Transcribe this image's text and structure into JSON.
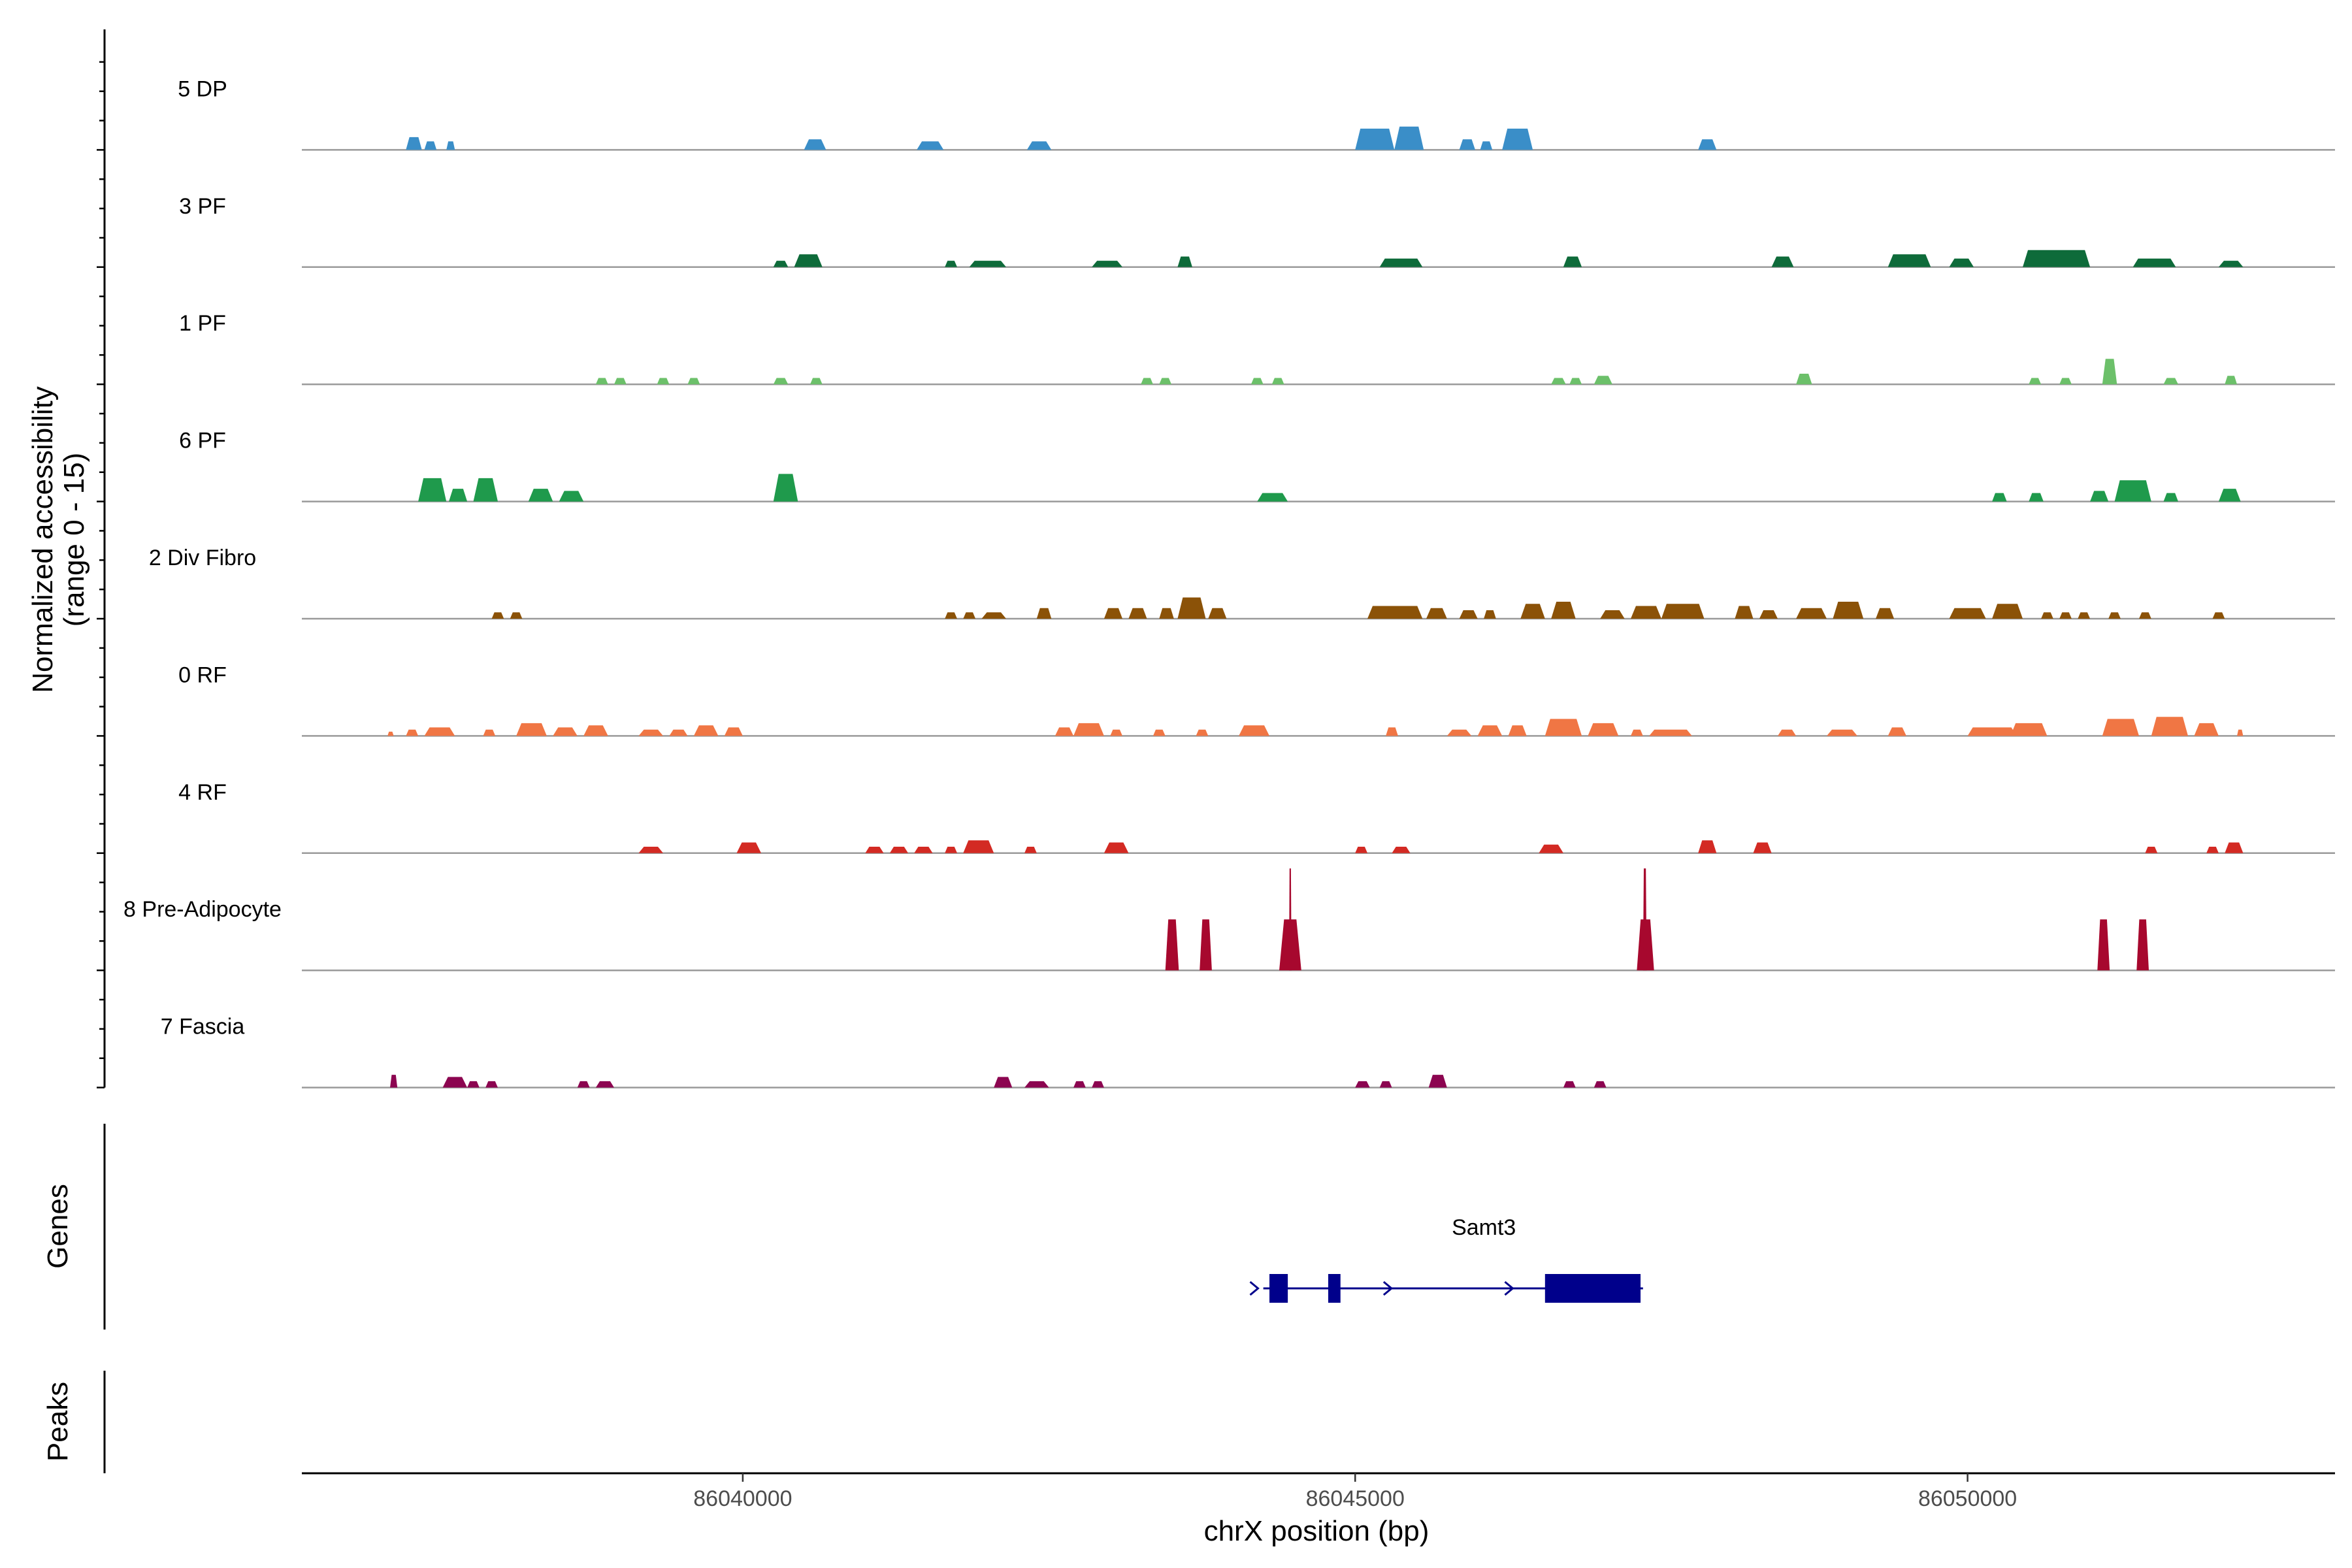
{
  "chart_data": {
    "type": "area",
    "title": "",
    "chromosome": "chrX",
    "xlabel": "chrX position (bp)",
    "ylabel_line1": "Normalized accessibility",
    "ylabel_line2": "(range 0 - 15)",
    "xlim": [
      86036400,
      86053000
    ],
    "ylim": [
      0,
      15
    ],
    "x_ticks": [
      86040000,
      86045000,
      86050000
    ],
    "x_tick_labels": [
      "86040000",
      "86045000",
      "86050000"
    ],
    "genes_label": "Genes",
    "peaks_label": "Peaks",
    "tracks": [
      {
        "name": "5 DP",
        "color": "#3a8ec8",
        "peaks": [
          [
            86037250,
            86037380,
            3
          ],
          [
            86037400,
            86037500,
            2
          ],
          [
            86037580,
            86037650,
            2
          ],
          [
            86040500,
            86040680,
            2.5
          ],
          [
            86041420,
            86041640,
            2
          ],
          [
            86042320,
            86042520,
            2
          ],
          [
            86045000,
            86045320,
            5
          ],
          [
            86045320,
            86045560,
            5.5
          ],
          [
            86045850,
            86045980,
            2.5
          ],
          [
            86046020,
            86046120,
            2
          ],
          [
            86046200,
            86046450,
            5
          ],
          [
            86047800,
            86047950,
            2.5
          ]
        ]
      },
      {
        "name": "3 PF",
        "color": "#0e6b3a",
        "peaks": [
          [
            86040250,
            86040370,
            1.5
          ],
          [
            86040420,
            86040650,
            3
          ],
          [
            86041650,
            86041750,
            1.5
          ],
          [
            86041850,
            86042150,
            1.5
          ],
          [
            86042850,
            86043100,
            1.5
          ],
          [
            86043550,
            86043670,
            2.5
          ],
          [
            86045200,
            86045550,
            2
          ],
          [
            86046700,
            86046850,
            2.5
          ],
          [
            86048400,
            86048580,
            2.5
          ],
          [
            86049350,
            86049700,
            3
          ],
          [
            86049850,
            86050050,
            2
          ],
          [
            86050450,
            86051000,
            4
          ],
          [
            86051350,
            86051700,
            2
          ],
          [
            86052050,
            86052250,
            1.5
          ]
        ]
      },
      {
        "name": "1 PF",
        "color": "#6cc06a",
        "peaks": [
          [
            86038800,
            86038900,
            1.5
          ],
          [
            86038950,
            86039050,
            1.5
          ],
          [
            86039300,
            86039400,
            1.5
          ],
          [
            86039550,
            86039650,
            1.5
          ],
          [
            86040250,
            86040370,
            1.5
          ],
          [
            86040550,
            86040650,
            1.5
          ],
          [
            86043250,
            86043350,
            1.5
          ],
          [
            86043400,
            86043500,
            1.5
          ],
          [
            86044150,
            86044250,
            1.5
          ],
          [
            86044320,
            86044420,
            1.5
          ],
          [
            86046600,
            86046720,
            1.5
          ],
          [
            86046750,
            86046850,
            1.5
          ],
          [
            86046950,
            86047100,
            2
          ],
          [
            86048600,
            86048730,
            2.5
          ],
          [
            86050500,
            86050600,
            1.5
          ],
          [
            86050750,
            86050850,
            1.5
          ],
          [
            86051100,
            86051220,
            6
          ],
          [
            86051600,
            86051720,
            1.5
          ],
          [
            86052100,
            86052200,
            2
          ]
        ]
      },
      {
        "name": "6 PF",
        "color": "#1f9a4c",
        "peaks": [
          [
            86037350,
            86037580,
            5.5
          ],
          [
            86037600,
            86037750,
            3
          ],
          [
            86037800,
            86038000,
            5.5
          ],
          [
            86038250,
            86038450,
            3
          ],
          [
            86038500,
            86038700,
            2.5
          ],
          [
            86040250,
            86040450,
            6.5
          ],
          [
            86044200,
            86044450,
            2
          ],
          [
            86050200,
            86050320,
            2
          ],
          [
            86050500,
            86050620,
            2
          ],
          [
            86051000,
            86051150,
            2.5
          ],
          [
            86051200,
            86051500,
            5
          ],
          [
            86051600,
            86051720,
            2
          ],
          [
            86052050,
            86052230,
            3
          ]
        ]
      },
      {
        "name": "2 Div Fibro",
        "color": "#8b5208",
        "peaks": [
          [
            86037950,
            86038050,
            1.5
          ],
          [
            86038100,
            86038200,
            1.5
          ],
          [
            86041650,
            86041750,
            1.5
          ],
          [
            86041800,
            86041900,
            1.5
          ],
          [
            86041950,
            86042150,
            1.5
          ],
          [
            86042400,
            86042520,
            2.5
          ],
          [
            86042950,
            86043100,
            2.5
          ],
          [
            86043150,
            86043300,
            2.5
          ],
          [
            86043400,
            86043520,
            2.5
          ],
          [
            86043550,
            86043780,
            5
          ],
          [
            86043800,
            86043950,
            2.5
          ],
          [
            86045100,
            86045550,
            3
          ],
          [
            86045580,
            86045750,
            2.5
          ],
          [
            86045850,
            86046000,
            2
          ],
          [
            86046050,
            86046150,
            2
          ],
          [
            86046350,
            86046550,
            3.5
          ],
          [
            86046600,
            86046800,
            4
          ],
          [
            86047000,
            86047200,
            2
          ],
          [
            86047250,
            86047500,
            3
          ],
          [
            86047500,
            86047850,
            3.5
          ],
          [
            86048100,
            86048250,
            3
          ],
          [
            86048300,
            86048450,
            2
          ],
          [
            86048600,
            86048850,
            2.5
          ],
          [
            86048900,
            86049150,
            4
          ],
          [
            86049250,
            86049400,
            2.5
          ],
          [
            86049850,
            86050150,
            2.5
          ],
          [
            86050200,
            86050450,
            3.5
          ],
          [
            86050600,
            86050700,
            1.5
          ],
          [
            86050750,
            86050850,
            1.5
          ],
          [
            86050900,
            86051000,
            1.5
          ],
          [
            86051150,
            86051250,
            1.5
          ],
          [
            86051400,
            86051500,
            1.5
          ],
          [
            86052000,
            86052100,
            1.5
          ]
        ]
      },
      {
        "name": "0 RF",
        "color": "#f07644",
        "peaks": [
          [
            86037100,
            86037150,
            1
          ],
          [
            86037250,
            86037350,
            1.5
          ],
          [
            86037400,
            86037650,
            2
          ],
          [
            86037880,
            86037980,
            1.5
          ],
          [
            86038150,
            86038400,
            3
          ],
          [
            86038450,
            86038650,
            2
          ],
          [
            86038700,
            86038900,
            2.5
          ],
          [
            86039150,
            86039350,
            1.5
          ],
          [
            86039400,
            86039550,
            1.5
          ],
          [
            86039600,
            86039800,
            2.5
          ],
          [
            86039850,
            86040000,
            2
          ],
          [
            86042550,
            86042700,
            2
          ],
          [
            86042700,
            86042950,
            3
          ],
          [
            86043000,
            86043100,
            1.5
          ],
          [
            86043350,
            86043450,
            1.5
          ],
          [
            86043700,
            86043800,
            1.5
          ],
          [
            86044050,
            86044300,
            2.5
          ],
          [
            86045250,
            86045350,
            2
          ],
          [
            86045750,
            86045950,
            1.5
          ],
          [
            86046000,
            86046200,
            2.5
          ],
          [
            86046250,
            86046400,
            2.5
          ],
          [
            86046550,
            86046850,
            4
          ],
          [
            86046900,
            86047150,
            3
          ],
          [
            86047250,
            86047350,
            1.5
          ],
          [
            86047400,
            86047750,
            1.5
          ],
          [
            86048450,
            86048600,
            1.5
          ],
          [
            86048850,
            86049100,
            1.5
          ],
          [
            86049350,
            86049500,
            2
          ],
          [
            86050000,
            86050400,
            2
          ],
          [
            86050350,
            86050650,
            3
          ],
          [
            86051100,
            86051400,
            4
          ],
          [
            86051500,
            86051800,
            4.5
          ],
          [
            86051850,
            86052050,
            3
          ],
          [
            86052200,
            86052250,
            1.5
          ]
        ]
      },
      {
        "name": "4 RF",
        "color": "#d32a23",
        "peaks": [
          [
            86039150,
            86039350,
            1.5
          ],
          [
            86039950,
            86040150,
            2.5
          ],
          [
            86041000,
            86041150,
            1.5
          ],
          [
            86041200,
            86041350,
            1.5
          ],
          [
            86041400,
            86041550,
            1.5
          ],
          [
            86041650,
            86041750,
            1.5
          ],
          [
            86041800,
            86042050,
            3
          ],
          [
            86042300,
            86042400,
            1.5
          ],
          [
            86042950,
            86043150,
            2.5
          ],
          [
            86045000,
            86045100,
            1.5
          ],
          [
            86045300,
            86045450,
            1.5
          ],
          [
            86046500,
            86046700,
            2
          ],
          [
            86047800,
            86047950,
            3
          ],
          [
            86048250,
            86048400,
            2.5
          ],
          [
            86051450,
            86051550,
            1.5
          ],
          [
            86051950,
            86052050,
            1.5
          ],
          [
            86052100,
            86052250,
            2.5
          ]
        ]
      },
      {
        "name": "8 Pre-Adipocyte",
        "color": "#a7082e",
        "peaks": [
          [
            86043450,
            86043560,
            12
          ],
          [
            86043730,
            86043830,
            12
          ],
          [
            86044380,
            86044560,
            12
          ],
          [
            86044460,
            86044480,
            24
          ],
          [
            86047300,
            86047440,
            12
          ],
          [
            86047350,
            86047380,
            24
          ],
          [
            86051060,
            86051160,
            12
          ],
          [
            86051380,
            86051480,
            12
          ]
        ]
      },
      {
        "name": "7 Fascia",
        "color": "#8c0550",
        "peaks": [
          [
            86037120,
            86037180,
            3
          ],
          [
            86037550,
            86037750,
            2.5
          ],
          [
            86037750,
            86037850,
            1.5
          ],
          [
            86037900,
            86038000,
            1.5
          ],
          [
            86038650,
            86038750,
            1.5
          ],
          [
            86038800,
            86038950,
            1.5
          ],
          [
            86042050,
            86042200,
            2.5
          ],
          [
            86042300,
            86042500,
            1.5
          ],
          [
            86042700,
            86042800,
            1.5
          ],
          [
            86042850,
            86042950,
            1.5
          ],
          [
            86045000,
            86045120,
            1.5
          ],
          [
            86045200,
            86045300,
            1.5
          ],
          [
            86045600,
            86045750,
            3
          ],
          [
            86046700,
            86046800,
            1.5
          ],
          [
            86046950,
            86047050,
            1.5
          ]
        ]
      }
    ],
    "genes": [
      {
        "name": "Samt3",
        "start": 86044250,
        "end": 86047350,
        "strand": "+",
        "color": "#00008b",
        "exons": [
          [
            86044300,
            86044450
          ],
          [
            86044780,
            86044880
          ],
          [
            86046550,
            86047330
          ]
        ],
        "arrows": [
          86044180,
          86045270,
          86046260
        ]
      }
    ],
    "peaks": []
  }
}
